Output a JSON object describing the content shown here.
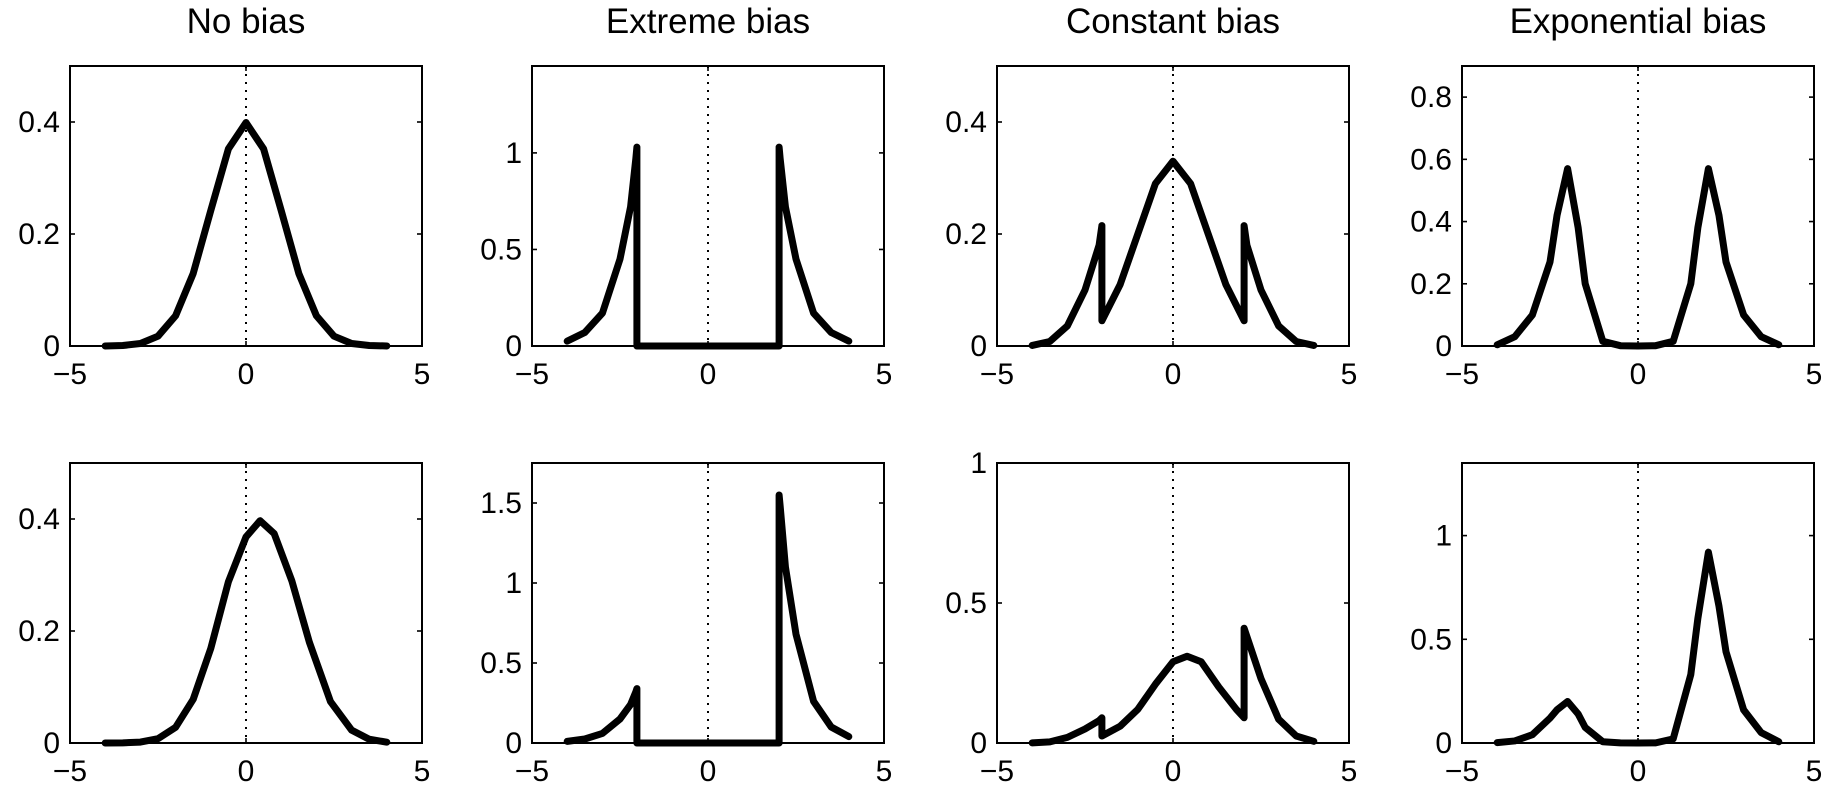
{
  "chart_data": [
    {
      "type": "line",
      "title": "No bias",
      "xlim": [
        -5,
        5
      ],
      "ylim": [
        0,
        0.5
      ],
      "xticks": [
        "-5",
        "0",
        "5"
      ],
      "yticks": [
        "0",
        "0.2",
        "0.4"
      ],
      "zero_reference_line": "dotted vertical at x = 0",
      "x": [
        -4,
        -3.5,
        -3,
        -2.5,
        -2,
        -1.5,
        -1,
        -0.5,
        0,
        0.5,
        1,
        1.5,
        2,
        2.5,
        3,
        3.5,
        4
      ],
      "y": [
        0.0001,
        0.0009,
        0.0044,
        0.0175,
        0.054,
        0.1295,
        0.242,
        0.352,
        0.399,
        0.352,
        0.242,
        0.1295,
        0.054,
        0.0175,
        0.0044,
        0.0009,
        0.0001
      ]
    },
    {
      "type": "line",
      "title": "Extreme bias",
      "xlim": [
        -5,
        5
      ],
      "ylim": [
        0,
        1.45
      ],
      "xticks": [
        "-5",
        "0",
        "5"
      ],
      "yticks": [
        "0",
        "0.5",
        "1"
      ],
      "zero_reference_line": "dotted vertical at x = 0",
      "x": [
        -4,
        -3.5,
        -3,
        -2.5,
        -2.2,
        -2.05,
        -2.02,
        -2.02,
        2.02,
        2.02,
        2.05,
        2.2,
        2.5,
        3,
        3.5,
        4
      ],
      "y": [
        0.025,
        0.07,
        0.17,
        0.45,
        0.72,
        0.97,
        1.03,
        0,
        0,
        1.03,
        0.97,
        0.72,
        0.45,
        0.17,
        0.07,
        0.025
      ]
    },
    {
      "type": "line",
      "title": "Constant bias",
      "xlim": [
        -5,
        5
      ],
      "ylim": [
        0,
        0.5
      ],
      "xticks": [
        "-5",
        "0",
        "5"
      ],
      "yticks": [
        "0",
        "0.2",
        "0.4"
      ],
      "zero_reference_line": "dotted vertical at x = 0",
      "x": [
        -4,
        -3.5,
        -3,
        -2.5,
        -2.1,
        -2.02,
        -2.02,
        -1.5,
        -1,
        -0.5,
        0,
        0.5,
        1,
        1.5,
        2.02,
        2.02,
        2.1,
        2.5,
        3,
        3.5,
        4
      ],
      "y": [
        0.001,
        0.008,
        0.036,
        0.1,
        0.18,
        0.215,
        0.045,
        0.11,
        0.2,
        0.29,
        0.33,
        0.29,
        0.2,
        0.11,
        0.045,
        0.215,
        0.18,
        0.1,
        0.036,
        0.008,
        0.001
      ]
    },
    {
      "type": "line",
      "title": "Exponential bias",
      "xlim": [
        -5,
        5
      ],
      "ylim": [
        0,
        0.9
      ],
      "xticks": [
        "-5",
        "0",
        "5"
      ],
      "yticks": [
        "0",
        "0.2",
        "0.4",
        "0.6",
        "0.8"
      ],
      "zero_reference_line": "dotted vertical at x = 0",
      "x": [
        -4,
        -3.5,
        -3,
        -2.5,
        -2.3,
        -2,
        -1.7,
        -1.5,
        -1,
        -0.5,
        0,
        0.5,
        1,
        1.5,
        1.7,
        2,
        2.3,
        2.5,
        3,
        3.5,
        4
      ],
      "y": [
        0.004,
        0.03,
        0.1,
        0.27,
        0.42,
        0.57,
        0.38,
        0.2,
        0.015,
        0.001,
        0,
        0.001,
        0.015,
        0.2,
        0.38,
        0.57,
        0.42,
        0.27,
        0.1,
        0.03,
        0.004
      ]
    },
    {
      "type": "line",
      "title": "",
      "xlim": [
        -5,
        5
      ],
      "ylim": [
        0,
        0.5
      ],
      "xticks": [
        "-5",
        "0",
        "5"
      ],
      "yticks": [
        "0",
        "0.2",
        "0.4"
      ],
      "zero_reference_line": "dotted vertical at x = 0",
      "x": [
        -4,
        -3.5,
        -3,
        -2.5,
        -2,
        -1.5,
        -1,
        -0.5,
        0,
        0.4,
        0.8,
        1.3,
        1.8,
        2.4,
        3,
        3.5,
        4
      ],
      "y": [
        4e-05,
        0.0003,
        0.0016,
        0.0077,
        0.028,
        0.078,
        0.169,
        0.288,
        0.368,
        0.397,
        0.374,
        0.29,
        0.18,
        0.074,
        0.023,
        0.0067,
        0.0015
      ]
    },
    {
      "type": "line",
      "title": "",
      "xlim": [
        -5,
        5
      ],
      "ylim": [
        0,
        1.75
      ],
      "xticks": [
        "-5",
        "0",
        "5"
      ],
      "yticks": [
        "0",
        "0.5",
        "1",
        "1.5"
      ],
      "zero_reference_line": "dotted vertical at x = 0",
      "x": [
        -4,
        -3.5,
        -3,
        -2.5,
        -2.2,
        -2.05,
        -2.02,
        -2.02,
        2.02,
        2.02,
        2.05,
        2.2,
        2.5,
        3,
        3.5,
        4
      ],
      "y": [
        0.01,
        0.025,
        0.06,
        0.15,
        0.24,
        0.32,
        0.34,
        0,
        0,
        1.55,
        1.48,
        1.1,
        0.68,
        0.26,
        0.1,
        0.04
      ]
    },
    {
      "type": "line",
      "title": "",
      "xlim": [
        -5,
        5
      ],
      "ylim": [
        0,
        1
      ],
      "xticks": [
        "-5",
        "0",
        "5"
      ],
      "yticks": [
        "0",
        "0.5",
        "1"
      ],
      "zero_reference_line": "dotted vertical at x = 0",
      "x": [
        -4,
        -3.5,
        -3,
        -2.5,
        -2.1,
        -2.02,
        -2.02,
        -1.5,
        -1,
        -0.5,
        0,
        0.4,
        0.8,
        1.3,
        1.8,
        2.02,
        2.02,
        2.1,
        2.5,
        3,
        3.5,
        4
      ],
      "y": [
        0.0005,
        0.004,
        0.02,
        0.05,
        0.08,
        0.09,
        0.025,
        0.06,
        0.12,
        0.21,
        0.29,
        0.31,
        0.29,
        0.2,
        0.12,
        0.09,
        0.41,
        0.38,
        0.23,
        0.085,
        0.025,
        0.006
      ]
    },
    {
      "type": "line",
      "title": "",
      "xlim": [
        -5,
        5
      ],
      "ylim": [
        0,
        1.35
      ],
      "xticks": [
        "-5",
        "0",
        "5"
      ],
      "yticks": [
        "0",
        "0.5",
        "1"
      ],
      "zero_reference_line": "dotted vertical at x = 0",
      "x": [
        -4,
        -3.5,
        -3,
        -2.5,
        -2.3,
        -2,
        -1.7,
        -1.5,
        -1,
        -0.5,
        0,
        0.5,
        1,
        1.5,
        1.7,
        2,
        2.3,
        2.5,
        3,
        3.5,
        4
      ],
      "y": [
        0.002,
        0.01,
        0.04,
        0.12,
        0.16,
        0.2,
        0.14,
        0.075,
        0.006,
        0.0005,
        0,
        0.0005,
        0.02,
        0.33,
        0.6,
        0.92,
        0.66,
        0.44,
        0.16,
        0.05,
        0.006
      ]
    }
  ]
}
